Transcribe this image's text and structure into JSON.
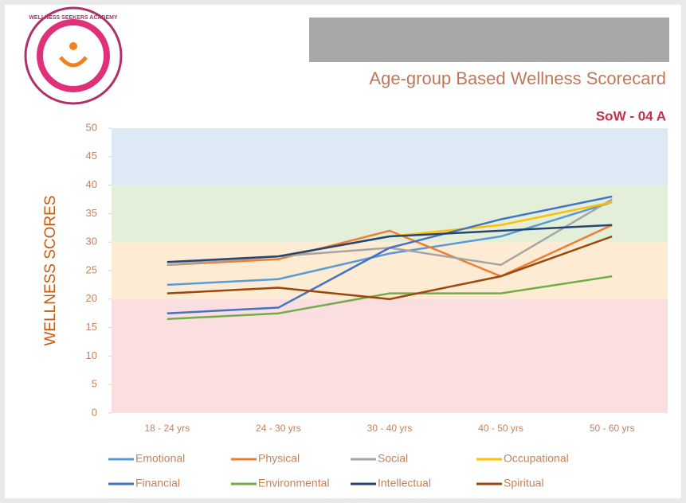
{
  "logo_text": "WELLNESS SEEKERS ACADEMY",
  "chart_data": {
    "type": "line",
    "title": "Age-group Based Wellness Scorecard",
    "subtitle": "SoW - 04 A",
    "y_label": "WELLNESS SCORES",
    "categories": [
      "18 - 24 yrs",
      "24 - 30 yrs",
      "30 - 40 yrs",
      "40 - 50 yrs",
      "50 - 60 yrs"
    ],
    "ylim": [
      0,
      50
    ],
    "yticks": [
      0,
      5,
      10,
      15,
      20,
      25,
      30,
      35,
      40,
      45,
      50
    ],
    "bands": [
      {
        "from": 0,
        "to": 20,
        "color": "#fbdfe0"
      },
      {
        "from": 20,
        "to": 30,
        "color": "#fdebd3"
      },
      {
        "from": 30,
        "to": 40,
        "color": "#e3efd9"
      },
      {
        "from": 40,
        "to": 50,
        "color": "#dde9f5"
      }
    ],
    "legend": "bottom",
    "series": [
      {
        "name": "Emotional",
        "color": "#5b9bd5",
        "values": [
          22.5,
          23.5,
          28,
          31,
          37
        ]
      },
      {
        "name": "Physical",
        "color": "#ed7d31",
        "values": [
          26,
          27,
          32,
          24,
          33
        ]
      },
      {
        "name": "Social",
        "color": "#a5a5a5",
        "values": [
          26,
          27.5,
          29,
          26,
          37.5
        ]
      },
      {
        "name": "Occupational",
        "color": "#ffc000",
        "values": [
          26.5,
          27.5,
          31,
          33,
          37
        ]
      },
      {
        "name": "Financial",
        "color": "#4472c4",
        "values": [
          17.5,
          18.5,
          29,
          34,
          38
        ]
      },
      {
        "name": "Environmental",
        "color": "#70ad47",
        "values": [
          16.5,
          17.5,
          21,
          21,
          24
        ]
      },
      {
        "name": "Intellectual",
        "color": "#264478",
        "values": [
          26.5,
          27.5,
          31,
          32,
          33
        ]
      },
      {
        "name": "Spiritual",
        "color": "#9e480e",
        "values": [
          21,
          22,
          20,
          24,
          31
        ]
      }
    ]
  }
}
